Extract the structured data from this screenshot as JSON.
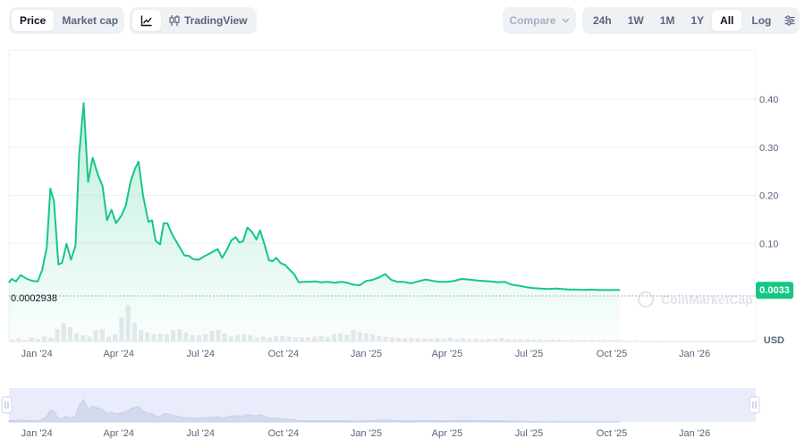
{
  "toolbar": {
    "metric_tabs": [
      "Price",
      "Market cap"
    ],
    "active_metric": "Price",
    "chart_type_label": "TradingView",
    "compare_label": "Compare",
    "ranges": [
      "24h",
      "1W",
      "1M",
      "1Y",
      "All"
    ],
    "active_range": "All",
    "log_label": "Log"
  },
  "chart_data": {
    "type": "area",
    "ylim": [
      0,
      0.45
    ],
    "y_ticks": [
      "0.40",
      "0.30",
      "0.20",
      "0.10"
    ],
    "y_tick_values": [
      0.4,
      0.3,
      0.2,
      0.1
    ],
    "y_unit": "USD",
    "x_start": "2023-12-01",
    "x_end": "2026-03-10",
    "x_ticks": [
      "Jan '24",
      "Apr '24",
      "Jul '24",
      "Oct '24",
      "Jan '25",
      "Apr '25",
      "Jul '25",
      "Oct '25",
      "Jan '26"
    ],
    "x_tick_dates": [
      "2024-01-01",
      "2024-04-01",
      "2024-07-01",
      "2024-10-01",
      "2025-01-01",
      "2025-04-01",
      "2025-07-01",
      "2025-10-01",
      "2026-01-01"
    ],
    "open_price_label": "0.0002938",
    "current_price_label": "0.0033",
    "series": [
      {
        "points": [
          [
            "2023-12-01",
            0.018
          ],
          [
            "2023-12-04",
            0.026
          ],
          [
            "2023-12-09",
            0.021
          ],
          [
            "2023-12-14",
            0.034
          ],
          [
            "2023-12-20",
            0.027
          ],
          [
            "2023-12-27",
            0.022
          ],
          [
            "2024-01-02",
            0.021
          ],
          [
            "2024-01-07",
            0.045
          ],
          [
            "2024-01-12",
            0.092
          ],
          [
            "2024-01-16",
            0.214
          ],
          [
            "2024-01-20",
            0.188
          ],
          [
            "2024-01-25",
            0.056
          ],
          [
            "2024-01-29",
            0.06
          ],
          [
            "2024-02-03",
            0.099
          ],
          [
            "2024-02-08",
            0.066
          ],
          [
            "2024-02-13",
            0.095
          ],
          [
            "2024-02-17",
            0.285
          ],
          [
            "2024-02-22",
            0.392
          ],
          [
            "2024-02-27",
            0.228
          ],
          [
            "2024-03-03",
            0.278
          ],
          [
            "2024-03-09",
            0.242
          ],
          [
            "2024-03-14",
            0.22
          ],
          [
            "2024-03-19",
            0.148
          ],
          [
            "2024-03-24",
            0.17
          ],
          [
            "2024-03-29",
            0.142
          ],
          [
            "2024-04-04",
            0.158
          ],
          [
            "2024-04-09",
            0.18
          ],
          [
            "2024-04-14",
            0.227
          ],
          [
            "2024-04-19",
            0.255
          ],
          [
            "2024-04-23",
            0.27
          ],
          [
            "2024-04-28",
            0.2
          ],
          [
            "2024-05-04",
            0.145
          ],
          [
            "2024-05-08",
            0.148
          ],
          [
            "2024-05-12",
            0.105
          ],
          [
            "2024-05-17",
            0.098
          ],
          [
            "2024-05-21",
            0.142
          ],
          [
            "2024-05-25",
            0.142
          ],
          [
            "2024-05-30",
            0.12
          ],
          [
            "2024-06-04",
            0.104
          ],
          [
            "2024-06-09",
            0.088
          ],
          [
            "2024-06-13",
            0.075
          ],
          [
            "2024-06-18",
            0.074
          ],
          [
            "2024-06-23",
            0.067
          ],
          [
            "2024-06-29",
            0.066
          ],
          [
            "2024-07-04",
            0.072
          ],
          [
            "2024-07-09",
            0.077
          ],
          [
            "2024-07-14",
            0.082
          ],
          [
            "2024-07-20",
            0.088
          ],
          [
            "2024-07-25",
            0.07
          ],
          [
            "2024-07-30",
            0.086
          ],
          [
            "2024-08-04",
            0.106
          ],
          [
            "2024-08-09",
            0.113
          ],
          [
            "2024-08-13",
            0.102
          ],
          [
            "2024-08-17",
            0.104
          ],
          [
            "2024-08-22",
            0.133
          ],
          [
            "2024-08-27",
            0.124
          ],
          [
            "2024-09-01",
            0.108
          ],
          [
            "2024-09-05",
            0.127
          ],
          [
            "2024-09-10",
            0.098
          ],
          [
            "2024-09-15",
            0.065
          ],
          [
            "2024-09-19",
            0.063
          ],
          [
            "2024-09-23",
            0.07
          ],
          [
            "2024-09-28",
            0.059
          ],
          [
            "2024-10-03",
            0.055
          ],
          [
            "2024-10-08",
            0.045
          ],
          [
            "2024-10-13",
            0.036
          ],
          [
            "2024-10-18",
            0.019
          ],
          [
            "2024-10-24",
            0.02
          ],
          [
            "2024-10-30",
            0.02
          ],
          [
            "2024-11-05",
            0.021
          ],
          [
            "2024-11-12",
            0.019
          ],
          [
            "2024-11-20",
            0.02
          ],
          [
            "2024-11-27",
            0.018
          ],
          [
            "2024-12-04",
            0.02
          ],
          [
            "2024-12-11",
            0.018
          ],
          [
            "2024-12-18",
            0.014
          ],
          [
            "2024-12-25",
            0.013
          ],
          [
            "2025-01-01",
            0.022
          ],
          [
            "2025-01-08",
            0.024
          ],
          [
            "2025-01-15",
            0.029
          ],
          [
            "2025-01-22",
            0.036
          ],
          [
            "2025-01-29",
            0.024
          ],
          [
            "2025-02-05",
            0.02
          ],
          [
            "2025-02-12",
            0.02
          ],
          [
            "2025-02-20",
            0.017
          ],
          [
            "2025-02-28",
            0.021
          ],
          [
            "2025-03-08",
            0.025
          ],
          [
            "2025-03-16",
            0.022
          ],
          [
            "2025-03-24",
            0.02
          ],
          [
            "2025-04-01",
            0.02
          ],
          [
            "2025-04-09",
            0.022
          ],
          [
            "2025-04-17",
            0.026
          ],
          [
            "2025-04-25",
            0.025
          ],
          [
            "2025-05-03",
            0.023
          ],
          [
            "2025-05-11",
            0.022
          ],
          [
            "2025-05-19",
            0.021
          ],
          [
            "2025-05-27",
            0.019
          ],
          [
            "2025-06-04",
            0.02
          ],
          [
            "2025-06-12",
            0.014
          ],
          [
            "2025-06-20",
            0.012
          ],
          [
            "2025-06-28",
            0.009
          ],
          [
            "2025-07-06",
            0.007
          ],
          [
            "2025-07-14",
            0.006
          ],
          [
            "2025-07-22",
            0.005
          ],
          [
            "2025-07-30",
            0.006
          ],
          [
            "2025-08-07",
            0.005
          ],
          [
            "2025-08-15",
            0.004
          ],
          [
            "2025-08-23",
            0.004
          ],
          [
            "2025-08-31",
            0.003
          ],
          [
            "2025-09-08",
            0.004
          ],
          [
            "2025-09-16",
            0.003
          ],
          [
            "2025-09-24",
            0.003
          ],
          [
            "2025-10-02",
            0.003
          ],
          [
            "2025-10-10",
            0.0033
          ]
        ]
      }
    ],
    "volume": [
      0.05,
      0.08,
      0.04,
      0.1,
      0.06,
      0.12,
      0.09,
      0.3,
      0.45,
      0.35,
      0.2,
      0.15,
      0.12,
      0.28,
      0.3,
      0.12,
      0.18,
      0.6,
      0.88,
      0.45,
      0.28,
      0.22,
      0.18,
      0.2,
      0.18,
      0.28,
      0.3,
      0.22,
      0.16,
      0.15,
      0.18,
      0.26,
      0.28,
      0.2,
      0.12,
      0.15,
      0.18,
      0.15,
      0.1,
      0.12,
      0.1,
      0.13,
      0.14,
      0.12,
      0.11,
      0.1,
      0.1,
      0.12,
      0.14,
      0.11,
      0.18,
      0.2,
      0.16,
      0.28,
      0.22,
      0.2,
      0.18,
      0.14,
      0.12,
      0.1,
      0.09,
      0.08,
      0.09,
      0.08,
      0.07,
      0.07,
      0.08,
      0.07,
      0.1,
      0.06,
      0.08,
      0.06,
      0.07,
      0.05,
      0.06,
      0.07,
      0.09,
      0.06,
      0.05,
      0.05,
      0.06,
      0.04,
      0.05,
      0.04,
      0.05,
      0.04,
      0.04,
      0.03,
      0.04,
      0.03,
      0.04,
      0.03,
      0.03,
      0.04,
      0.03,
      0.03,
      0.02,
      0.03,
      0.02,
      0.02,
      0.03,
      0.02,
      0.02,
      0.02,
      0.02,
      0.02,
      0.02,
      0.02,
      0.02,
      0.02,
      0.02,
      0.02,
      0.02,
      0.02,
      0.02,
      0.02
    ],
    "watermark": "CoinMarketCap"
  }
}
